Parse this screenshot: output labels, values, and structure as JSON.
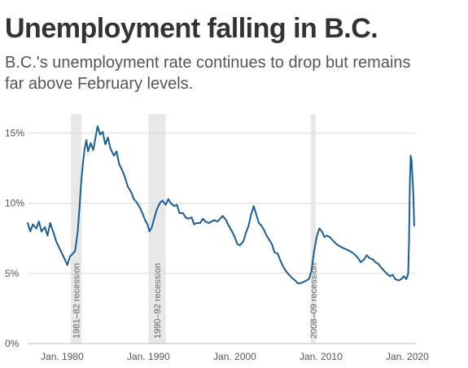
{
  "title": "Unemployment falling in B.C.",
  "subtitle": "B.C.'s unemployment rate continues to drop but remains far above February levels.",
  "colors": {
    "line": "#1a5e96",
    "recession": "#e8e8e8",
    "grid": "#dcdcdc"
  },
  "chart_data": {
    "type": "line",
    "title": "Unemployment falling in B.C.",
    "subtitle": "B.C.'s unemployment rate continues to drop but remains far above February levels.",
    "xlabel": "",
    "ylabel": "",
    "xlim": [
      1976.0,
      2021.0
    ],
    "ylim": [
      0,
      15.5
    ],
    "y_ticks": [
      {
        "value": 0,
        "label": "0%"
      },
      {
        "value": 5,
        "label": "5%"
      },
      {
        "value": 10,
        "label": "10%"
      },
      {
        "value": 15,
        "label": "15%"
      }
    ],
    "x_ticks": [
      {
        "value": 1980,
        "label": "Jan. 1980"
      },
      {
        "value": 1990,
        "label": "Jan. 1990"
      },
      {
        "value": 2000,
        "label": "Jan. 2000"
      },
      {
        "value": 2010,
        "label": "Jan. 2010"
      },
      {
        "value": 2020,
        "label": "Jan. 2020"
      }
    ],
    "recessions": [
      {
        "start": 1981.0,
        "end": 1982.25,
        "label": "1981–82 recession"
      },
      {
        "start": 1990.0,
        "end": 1992.0,
        "label": "1990–92 recession"
      },
      {
        "start": 2008.8,
        "end": 2009.4,
        "label": "2008–09 recession"
      }
    ],
    "grid": true,
    "series": [
      {
        "values": [
          [
            1976.0,
            8.6
          ],
          [
            1976.3,
            8.0
          ],
          [
            1976.6,
            8.5
          ],
          [
            1977.0,
            8.2
          ],
          [
            1977.3,
            8.7
          ],
          [
            1977.6,
            8.0
          ],
          [
            1978.0,
            8.3
          ],
          [
            1978.3,
            7.7
          ],
          [
            1978.6,
            8.6
          ],
          [
            1979.0,
            7.9
          ],
          [
            1979.3,
            7.3
          ],
          [
            1979.6,
            6.9
          ],
          [
            1980.0,
            6.4
          ],
          [
            1980.3,
            6.0
          ],
          [
            1980.6,
            5.6
          ],
          [
            1980.9,
            6.2
          ],
          [
            1981.2,
            6.4
          ],
          [
            1981.5,
            6.6
          ],
          [
            1981.8,
            8.0
          ],
          [
            1982.0,
            9.6
          ],
          [
            1982.2,
            11.5
          ],
          [
            1982.4,
            12.8
          ],
          [
            1982.6,
            13.9
          ],
          [
            1982.8,
            14.5
          ],
          [
            1983.0,
            13.7
          ],
          [
            1983.3,
            14.3
          ],
          [
            1983.6,
            13.8
          ],
          [
            1983.9,
            14.8
          ],
          [
            1984.1,
            15.5
          ],
          [
            1984.4,
            14.9
          ],
          [
            1984.7,
            15.1
          ],
          [
            1985.0,
            14.2
          ],
          [
            1985.3,
            14.7
          ],
          [
            1985.6,
            13.9
          ],
          [
            1986.0,
            13.4
          ],
          [
            1986.3,
            13.7
          ],
          [
            1986.6,
            12.8
          ],
          [
            1987.0,
            12.3
          ],
          [
            1987.3,
            11.8
          ],
          [
            1987.6,
            11.2
          ],
          [
            1988.0,
            10.8
          ],
          [
            1988.3,
            10.3
          ],
          [
            1988.6,
            10.1
          ],
          [
            1989.0,
            9.7
          ],
          [
            1989.3,
            9.3
          ],
          [
            1989.6,
            8.8
          ],
          [
            1989.9,
            8.5
          ],
          [
            1990.1,
            8.0
          ],
          [
            1990.4,
            8.3
          ],
          [
            1990.7,
            9.0
          ],
          [
            1991.0,
            9.6
          ],
          [
            1991.3,
            10.0
          ],
          [
            1991.6,
            10.2
          ],
          [
            1992.0,
            9.9
          ],
          [
            1992.3,
            10.3
          ],
          [
            1992.6,
            10.0
          ],
          [
            1993.0,
            9.8
          ],
          [
            1993.3,
            9.9
          ],
          [
            1993.6,
            9.3
          ],
          [
            1994.0,
            9.3
          ],
          [
            1994.3,
            9.0
          ],
          [
            1994.6,
            8.9
          ],
          [
            1995.0,
            9.0
          ],
          [
            1995.3,
            8.5
          ],
          [
            1995.6,
            8.6
          ],
          [
            1996.0,
            8.6
          ],
          [
            1996.3,
            8.9
          ],
          [
            1996.6,
            8.7
          ],
          [
            1997.0,
            8.6
          ],
          [
            1997.3,
            8.7
          ],
          [
            1997.6,
            8.8
          ],
          [
            1998.0,
            8.7
          ],
          [
            1998.3,
            8.9
          ],
          [
            1998.6,
            9.1
          ],
          [
            1999.0,
            8.8
          ],
          [
            1999.3,
            8.4
          ],
          [
            1999.6,
            8.1
          ],
          [
            2000.0,
            7.6
          ],
          [
            2000.3,
            7.1
          ],
          [
            2000.6,
            7.0
          ],
          [
            2001.0,
            7.3
          ],
          [
            2001.3,
            7.9
          ],
          [
            2001.6,
            8.4
          ],
          [
            2001.9,
            9.2
          ],
          [
            2002.2,
            9.8
          ],
          [
            2002.5,
            9.2
          ],
          [
            2002.8,
            8.6
          ],
          [
            2003.1,
            8.4
          ],
          [
            2003.4,
            8.1
          ],
          [
            2003.7,
            7.7
          ],
          [
            2004.0,
            7.4
          ],
          [
            2004.3,
            7.1
          ],
          [
            2004.6,
            6.5
          ],
          [
            2005.0,
            6.4
          ],
          [
            2005.3,
            5.9
          ],
          [
            2005.6,
            5.5
          ],
          [
            2006.0,
            5.1
          ],
          [
            2006.3,
            4.9
          ],
          [
            2006.6,
            4.7
          ],
          [
            2007.0,
            4.5
          ],
          [
            2007.3,
            4.3
          ],
          [
            2007.6,
            4.3
          ],
          [
            2008.0,
            4.4
          ],
          [
            2008.3,
            4.5
          ],
          [
            2008.6,
            4.6
          ],
          [
            2008.9,
            5.2
          ],
          [
            2009.2,
            6.6
          ],
          [
            2009.5,
            7.6
          ],
          [
            2009.8,
            8.2
          ],
          [
            2010.1,
            8.0
          ],
          [
            2010.4,
            7.6
          ],
          [
            2010.7,
            7.7
          ],
          [
            2011.0,
            7.6
          ],
          [
            2011.3,
            7.4
          ],
          [
            2011.6,
            7.2
          ],
          [
            2012.0,
            7.0
          ],
          [
            2012.3,
            6.9
          ],
          [
            2012.6,
            6.8
          ],
          [
            2013.0,
            6.7
          ],
          [
            2013.3,
            6.6
          ],
          [
            2013.6,
            6.5
          ],
          [
            2014.0,
            6.3
          ],
          [
            2014.3,
            6.1
          ],
          [
            2014.6,
            5.8
          ],
          [
            2015.0,
            6.0
          ],
          [
            2015.3,
            6.3
          ],
          [
            2015.6,
            6.1
          ],
          [
            2016.0,
            6.0
          ],
          [
            2016.3,
            5.8
          ],
          [
            2016.6,
            5.7
          ],
          [
            2017.0,
            5.4
          ],
          [
            2017.3,
            5.2
          ],
          [
            2017.6,
            5.0
          ],
          [
            2018.0,
            4.8
          ],
          [
            2018.3,
            4.9
          ],
          [
            2018.6,
            4.6
          ],
          [
            2019.0,
            4.5
          ],
          [
            2019.3,
            4.6
          ],
          [
            2019.6,
            4.8
          ],
          [
            2019.9,
            4.6
          ],
          [
            2020.1,
            5.0
          ],
          [
            2020.2,
            7.2
          ],
          [
            2020.3,
            11.5
          ],
          [
            2020.4,
            13.4
          ],
          [
            2020.5,
            13.0
          ],
          [
            2020.6,
            11.8
          ],
          [
            2020.7,
            10.7
          ],
          [
            2020.8,
            8.4
          ]
        ]
      }
    ]
  }
}
